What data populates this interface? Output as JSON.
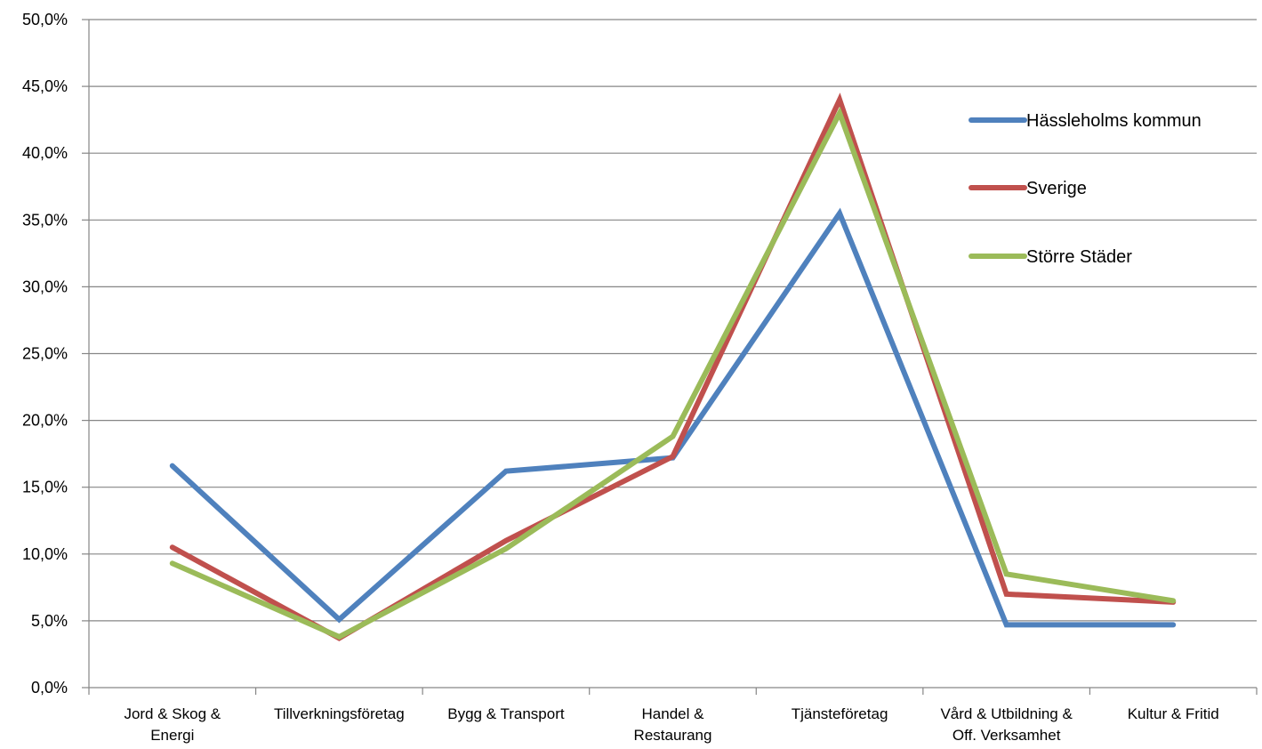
{
  "chart_data": {
    "type": "line",
    "categories": [
      "Jord & Skog & Energi",
      "Tillverkningsföretag",
      "Bygg & Transport",
      "Handel & Restaurang",
      "Tjänsteföretag",
      "Vård & Utbildning & Off. Verksamhet",
      "Kultur & Fritid"
    ],
    "category_lines": [
      [
        "Jord & Skog &",
        "Energi"
      ],
      [
        "Tillverkningsföretag"
      ],
      [
        "Bygg & Transport"
      ],
      [
        "Handel &",
        "Restaurang"
      ],
      [
        "Tjänsteföretag"
      ],
      [
        "Vård & Utbildning &",
        "Off. Verksamhet"
      ],
      [
        "Kultur & Fritid"
      ]
    ],
    "series": [
      {
        "name": "Hässleholms kommun",
        "color": "#4f81bd",
        "values": [
          16.6,
          5.1,
          16.2,
          17.2,
          35.5,
          4.7,
          4.7
        ]
      },
      {
        "name": "Sverige",
        "color": "#c0504d",
        "values": [
          10.5,
          3.7,
          11.0,
          17.3,
          44.0,
          7.0,
          6.4
        ]
      },
      {
        "name": "Större Städer",
        "color": "#9bbb59",
        "values": [
          9.3,
          3.8,
          10.4,
          18.8,
          43.0,
          8.5,
          6.5
        ]
      }
    ],
    "ylim": [
      0,
      50
    ],
    "yticks": [
      "0,0%",
      "5,0%",
      "10,0%",
      "15,0%",
      "20,0%",
      "25,0%",
      "30,0%",
      "35,0%",
      "40,0%",
      "45,0%",
      "50,0%"
    ],
    "grid": true,
    "legend_position": "right"
  }
}
